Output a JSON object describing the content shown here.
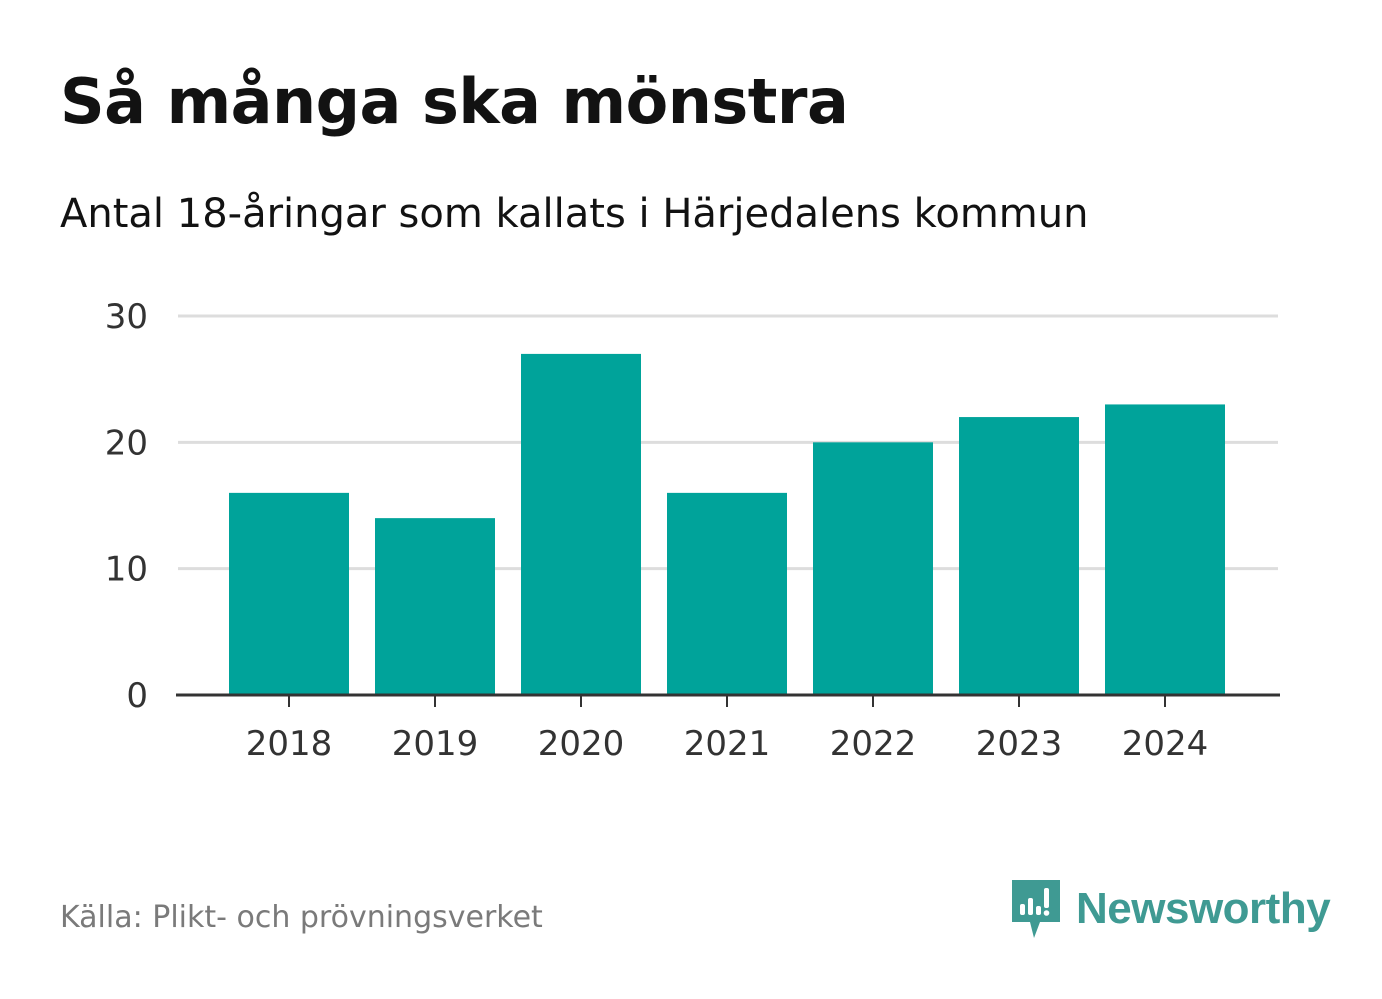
{
  "header": {
    "title": "Så många ska mönstra",
    "subtitle": "Antal 18-åringar som kallats i Härjedalens kommun"
  },
  "footer": {
    "source": "Källa: Plikt- och prövningsverket",
    "brand": "Newsworthy",
    "brand_icon": "newsworthy-logo-icon"
  },
  "colors": {
    "bar": "#00a39a",
    "grid": "#dddddd",
    "axis": "#333333",
    "brand": "#3f9a93"
  },
  "chart_data": {
    "type": "bar",
    "title": "Så många ska mönstra",
    "subtitle": "Antal 18-åringar som kallats i Härjedalens kommun",
    "categories": [
      "2018",
      "2019",
      "2020",
      "2021",
      "2022",
      "2023",
      "2024"
    ],
    "values": [
      16,
      14,
      27,
      16,
      20,
      22,
      23
    ],
    "xlabel": "",
    "ylabel": "",
    "ylim": [
      0,
      30
    ],
    "yticks": [
      0,
      10,
      20,
      30
    ],
    "grid": true,
    "legend": "none"
  }
}
